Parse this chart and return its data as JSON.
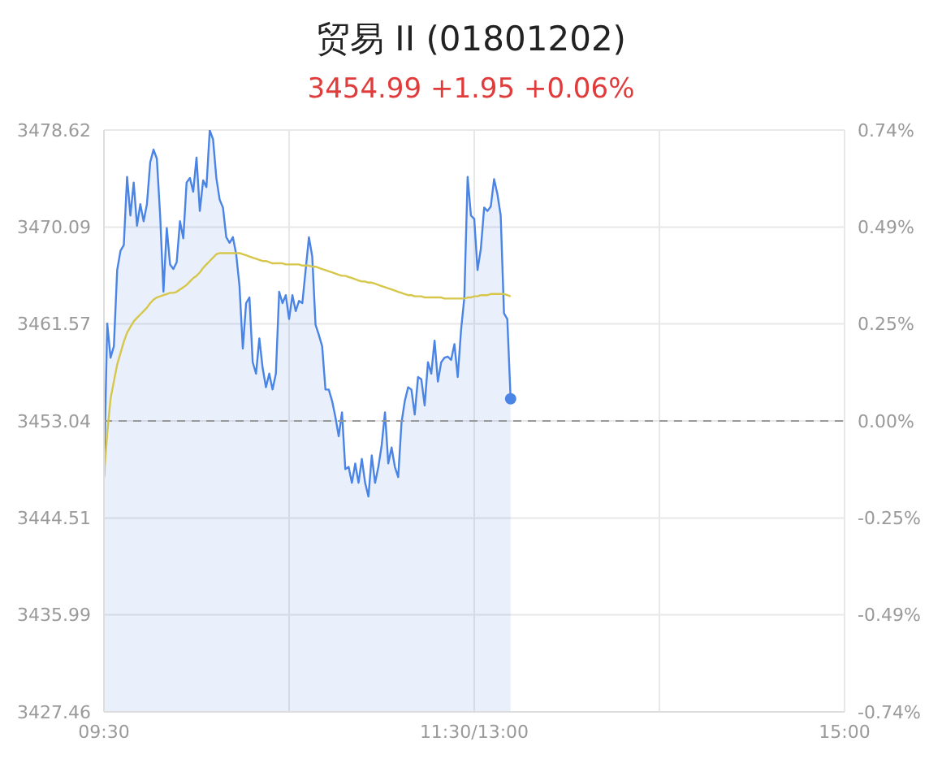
{
  "chart_data": {
    "type": "line",
    "title": "贸易 II (01801202)",
    "subtitle": "3454.99 +1.95 +0.06%",
    "categories": [
      "09:30",
      null,
      null,
      null,
      null,
      null,
      null,
      null,
      null,
      null,
      null,
      null,
      null,
      null,
      null,
      null,
      null,
      null,
      null,
      null,
      null,
      null,
      null,
      null,
      null,
      null,
      null,
      null,
      null,
      null,
      null,
      null,
      null,
      null,
      null,
      null,
      null,
      null,
      null,
      null,
      null,
      null,
      null,
      null,
      null,
      null,
      null,
      null,
      null,
      null,
      null,
      null,
      null,
      null,
      null,
      null,
      null,
      null,
      null,
      null,
      null,
      null,
      null,
      null,
      null,
      null,
      null,
      null,
      null,
      null,
      null,
      null,
      null,
      null,
      null,
      null,
      null,
      null,
      null,
      null,
      null,
      null,
      null,
      null,
      null,
      null,
      null,
      null,
      null,
      null,
      null,
      null,
      null,
      null,
      null,
      null,
      null,
      null,
      null,
      null,
      null,
      null,
      null,
      null,
      null,
      null,
      null,
      null,
      null,
      null,
      null,
      null,
      "11:30/13:00",
      null,
      null,
      null,
      null,
      null,
      null,
      null,
      null,
      null,
      null,
      null,
      null,
      null,
      null,
      null,
      null,
      null,
      null,
      null,
      null,
      null,
      null,
      null,
      null,
      null,
      null,
      null,
      null,
      null,
      null,
      null,
      null,
      null,
      null,
      null,
      null,
      null,
      null,
      null,
      null,
      null,
      null,
      null,
      null,
      null,
      null,
      null,
      null,
      null,
      null,
      null,
      null,
      null,
      null,
      null,
      null,
      null,
      null,
      null,
      null,
      null,
      null,
      null,
      null,
      null,
      null,
      null,
      null,
      null,
      null,
      null,
      null,
      null,
      null,
      null,
      null,
      null,
      null,
      null,
      null,
      null,
      null,
      null,
      null,
      null,
      null,
      null,
      null,
      null,
      null,
      null,
      null,
      null,
      null,
      null,
      null,
      null,
      null,
      null,
      null,
      null,
      null,
      null,
      null,
      null,
      null,
      null,
      null,
      null,
      null,
      null,
      "15:00"
    ],
    "ylim": [
      3427.46,
      3478.62
    ],
    "yticks": [
      3427.46,
      3435.99,
      3444.51,
      3453.04,
      3461.57,
      3470.09,
      3478.62
    ],
    "y2lim": [
      -0.741,
      0.741
    ],
    "y2ticks": [
      {
        "value": -0.741,
        "label": "-0.74%"
      },
      {
        "value": -0.494,
        "label": "-0.49%"
      },
      {
        "value": -0.247,
        "label": "-0.25%"
      },
      {
        "value": 0,
        "label": "0.00%"
      },
      {
        "value": 0.247,
        "label": "0.25%"
      },
      {
        "value": 0.494,
        "label": "0.49%"
      },
      {
        "value": 0.741,
        "label": "0.74%"
      }
    ],
    "grid": true,
    "ref_lines": [
      {
        "axis": "y",
        "value": 3453.04,
        "color": "#999999",
        "line_style": "dashed"
      }
    ],
    "series": [
      {
        "type": "area",
        "color": "#4a84e4",
        "values": [
          3448.1,
          3461.6,
          3458.6,
          3459.6,
          3466.3,
          3468.0,
          3468.5,
          3474.5,
          3471.1,
          3474.0,
          3470.2,
          3472.1,
          3470.6,
          3472.1,
          3475.8,
          3476.9,
          3476.1,
          3471.1,
          3464.4,
          3470.0,
          3466.8,
          3466.4,
          3467.0,
          3470.6,
          3469.1,
          3474.0,
          3474.4,
          3473.2,
          3476.2,
          3471.5,
          3474.2,
          3473.6,
          3478.6,
          3477.8,
          3474.4,
          3472.5,
          3471.8,
          3469.2,
          3468.7,
          3469.2,
          3467.7,
          3464.9,
          3459.4,
          3463.4,
          3463.9,
          3458.2,
          3457.2,
          3460.3,
          3457.7,
          3456.0,
          3457.2,
          3455.8,
          3457.2,
          3464.4,
          3463.4,
          3464.1,
          3462.0,
          3464.1,
          3462.7,
          3463.6,
          3463.4,
          3466.3,
          3469.2,
          3467.5,
          3461.5,
          3460.6,
          3459.6,
          3455.8,
          3455.8,
          3454.8,
          3453.4,
          3451.7,
          3453.8,
          3448.8,
          3449.0,
          3447.6,
          3449.3,
          3447.6,
          3449.7,
          3447.6,
          3446.4,
          3450.0,
          3447.6,
          3449.0,
          3450.9,
          3453.8,
          3449.3,
          3450.7,
          3449.0,
          3448.1,
          3452.9,
          3454.8,
          3456.0,
          3455.8,
          3453.6,
          3456.9,
          3456.7,
          3454.4,
          3458.2,
          3457.2,
          3460.1,
          3456.5,
          3458.2,
          3458.6,
          3458.7,
          3458.4,
          3459.8,
          3456.9,
          3461.0,
          3463.9,
          3474.5,
          3471.1,
          3470.8,
          3466.3,
          3468.2,
          3471.8,
          3471.5,
          3471.9,
          3474.3,
          3473.0,
          3471.1,
          3462.5,
          3462.0,
          3454.99,
          null,
          null,
          null,
          null,
          null,
          null,
          null,
          null,
          null,
          null,
          null,
          null,
          null,
          null,
          null,
          null,
          null,
          null,
          null,
          null,
          null,
          null,
          null,
          null,
          null,
          null,
          null,
          null,
          null,
          null,
          null,
          null,
          null,
          null,
          null,
          null,
          null,
          null,
          null,
          null,
          null,
          null,
          null,
          null,
          null,
          null,
          null,
          null,
          null,
          null,
          null,
          null,
          null,
          null,
          null,
          null,
          null,
          null,
          null,
          null,
          null,
          null,
          null,
          null,
          null,
          null,
          null,
          null,
          null,
          null,
          null,
          null,
          null,
          null,
          null,
          null,
          null,
          null,
          null,
          null,
          null,
          null,
          null,
          null,
          null,
          null,
          null,
          null,
          null,
          null,
          null,
          null,
          null,
          null,
          null,
          null,
          null,
          null,
          null,
          null,
          null
        ]
      },
      {
        "color": "#d6c64a",
        "values": [
          3448.1,
          3452.0,
          3455.0,
          3456.5,
          3458.0,
          3459.0,
          3460.0,
          3460.8,
          3461.3,
          3461.8,
          3462.1,
          3462.4,
          3462.7,
          3463.0,
          3463.4,
          3463.7,
          3463.9,
          3464.0,
          3464.1,
          3464.2,
          3464.3,
          3464.3,
          3464.4,
          3464.6,
          3464.8,
          3465.0,
          3465.3,
          3465.6,
          3465.8,
          3466.1,
          3466.5,
          3466.8,
          3467.1,
          3467.4,
          3467.7,
          3467.8,
          3467.8,
          3467.8,
          3467.8,
          3467.8,
          3467.8,
          3467.8,
          3467.7,
          3467.6,
          3467.5,
          3467.4,
          3467.3,
          3467.2,
          3467.1,
          3467.1,
          3467.0,
          3466.9,
          3466.9,
          3466.9,
          3466.9,
          3466.8,
          3466.8,
          3466.8,
          3466.8,
          3466.8,
          3466.7,
          3466.7,
          3466.7,
          3466.6,
          3466.6,
          3466.5,
          3466.4,
          3466.3,
          3466.2,
          3466.1,
          3466.0,
          3465.9,
          3465.8,
          3465.8,
          3465.7,
          3465.6,
          3465.5,
          3465.4,
          3465.3,
          3465.3,
          3465.2,
          3465.2,
          3465.1,
          3465.0,
          3464.9,
          3464.8,
          3464.7,
          3464.6,
          3464.5,
          3464.4,
          3464.3,
          3464.2,
          3464.1,
          3464.1,
          3464.0,
          3464.0,
          3464.0,
          3463.9,
          3463.9,
          3463.9,
          3463.9,
          3463.9,
          3463.9,
          3463.8,
          3463.8,
          3463.8,
          3463.8,
          3463.8,
          3463.8,
          3463.8,
          3463.9,
          3463.9,
          3464.0,
          3464.0,
          3464.1,
          3464.1,
          3464.1,
          3464.2,
          3464.2,
          3464.2,
          3464.2,
          3464.2,
          3464.1,
          3464.0,
          null,
          null,
          null,
          null,
          null,
          null,
          null,
          null,
          null,
          null,
          null,
          null,
          null,
          null,
          null,
          null,
          null,
          null,
          null,
          null,
          null,
          null,
          null,
          null,
          null,
          null,
          null,
          null,
          null,
          null,
          null,
          null,
          null,
          null,
          null,
          null,
          null,
          null,
          null,
          null,
          null,
          null,
          null,
          null,
          null,
          null,
          null,
          null,
          null,
          null,
          null,
          null,
          null,
          null,
          null,
          null,
          null,
          null,
          null,
          null,
          null,
          null,
          null,
          null,
          null,
          null,
          null,
          null,
          null,
          null,
          null,
          null,
          null,
          null,
          null,
          null,
          null,
          null,
          null,
          null,
          null,
          null,
          null,
          null,
          null,
          null,
          null,
          null,
          null,
          null,
          null,
          null,
          null,
          null,
          null,
          null,
          null,
          null,
          null,
          null,
          null
        ]
      }
    ]
  }
}
